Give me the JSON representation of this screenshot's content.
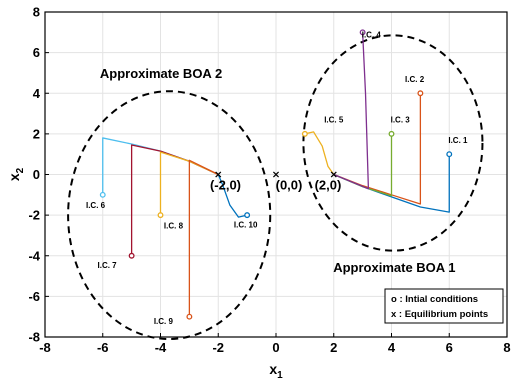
{
  "chart_data": {
    "type": "line",
    "title": "",
    "xlabel": "x",
    "xlabel_sub": "1",
    "ylabel": "x",
    "ylabel_sub": "2",
    "xlim": [
      -8,
      8
    ],
    "ylim": [
      -8,
      8
    ],
    "xticks": [
      "-8",
      "-6",
      "-4",
      "-2",
      "0",
      "2",
      "4",
      "6",
      "8"
    ],
    "yticks": [
      "-8",
      "-6",
      "-4",
      "-2",
      "0",
      "2",
      "4",
      "6",
      "8"
    ],
    "grid": true,
    "equilibria": [
      {
        "label": "(-2,0)",
        "x": -2,
        "y": 0
      },
      {
        "label": "(0,0)",
        "x": 0,
        "y": 0
      },
      {
        "label": "(2,0)",
        "x": 2,
        "y": 0
      }
    ],
    "regions": [
      {
        "label": "Approximate BOA 1",
        "cx": 4.05,
        "cy": 1.55,
        "rx": 3.1,
        "ry": 5.3
      },
      {
        "label": "Approximate BOA 2",
        "cx": -3.7,
        "cy": -2.0,
        "rx": 3.5,
        "ry": 6.1
      }
    ],
    "series": [
      {
        "label": "I.C. 1",
        "color": "#0072BD",
        "ic": [
          6,
          1
        ],
        "points": [
          [
            6,
            1
          ],
          [
            6,
            -1.5
          ],
          [
            6,
            -1.85
          ],
          [
            5,
            -1.6
          ],
          [
            4,
            -1.1
          ],
          [
            3,
            -0.6
          ],
          [
            2,
            0
          ]
        ]
      },
      {
        "label": "I.C. 2",
        "color": "#D95319",
        "ic": [
          5,
          4
        ],
        "points": [
          [
            5,
            4
          ],
          [
            5,
            -1.2
          ],
          [
            5,
            -1.45
          ],
          [
            4,
            -1.0
          ],
          [
            3,
            -0.55
          ],
          [
            2,
            0
          ]
        ]
      },
      {
        "label": "I.C. 3",
        "color": "#77AC30",
        "ic": [
          4,
          2
        ],
        "points": [
          [
            4,
            2
          ],
          [
            4,
            -1.05
          ],
          [
            3,
            -0.6
          ],
          [
            2,
            0
          ]
        ]
      },
      {
        "label": "I.C. 4",
        "color": "#7E2F8E",
        "ic": [
          3,
          7
        ],
        "points": [
          [
            3,
            7
          ],
          [
            3.1,
            4
          ],
          [
            3.2,
            -0.7
          ],
          [
            2.6,
            -0.35
          ],
          [
            2,
            0
          ]
        ]
      },
      {
        "label": "I.C. 5",
        "color": "#EDB120",
        "ic": [
          1,
          2
        ],
        "points": [
          [
            1,
            2
          ],
          [
            1.3,
            2.1
          ],
          [
            1.6,
            1.4
          ],
          [
            1.8,
            0.4
          ],
          [
            2,
            0
          ]
        ]
      },
      {
        "label": "I.C. 6",
        "color": "#4DBEEE",
        "ic": [
          -6,
          -1
        ],
        "points": [
          [
            -6,
            -1
          ],
          [
            -6,
            1.8
          ],
          [
            -5,
            1.5
          ],
          [
            -4,
            1.15
          ],
          [
            -3,
            0.65
          ],
          [
            -2,
            0
          ]
        ]
      },
      {
        "label": "I.C. 7",
        "color": "#A2142F",
        "ic": [
          -5,
          -4
        ],
        "points": [
          [
            -5,
            -4
          ],
          [
            -5,
            1.45
          ],
          [
            -4,
            1.15
          ],
          [
            -3,
            0.65
          ],
          [
            -2,
            0
          ]
        ]
      },
      {
        "label": "I.C. 8",
        "color": "#EDB120",
        "ic": [
          -4,
          -2
        ],
        "points": [
          [
            -4,
            -2
          ],
          [
            -4,
            1.1
          ],
          [
            -3,
            0.65
          ],
          [
            -2,
            0
          ]
        ]
      },
      {
        "label": "I.C. 9",
        "color": "#D95319",
        "ic": [
          -3,
          -7
        ],
        "points": [
          [
            -3,
            -7
          ],
          [
            -3,
            0.7
          ],
          [
            -2,
            0
          ]
        ]
      },
      {
        "label": "I.C. 10",
        "color": "#0072BD",
        "ic": [
          -1,
          -2
        ],
        "points": [
          [
            -1,
            -2
          ],
          [
            -1.3,
            -2.1
          ],
          [
            -1.6,
            -1.5
          ],
          [
            -1.85,
            -0.5
          ],
          [
            -2,
            0
          ]
        ]
      }
    ],
    "legend": {
      "placement": "bottom-right",
      "items": [
        "o : Intial conditions",
        "x : Equilibrium points"
      ]
    }
  }
}
